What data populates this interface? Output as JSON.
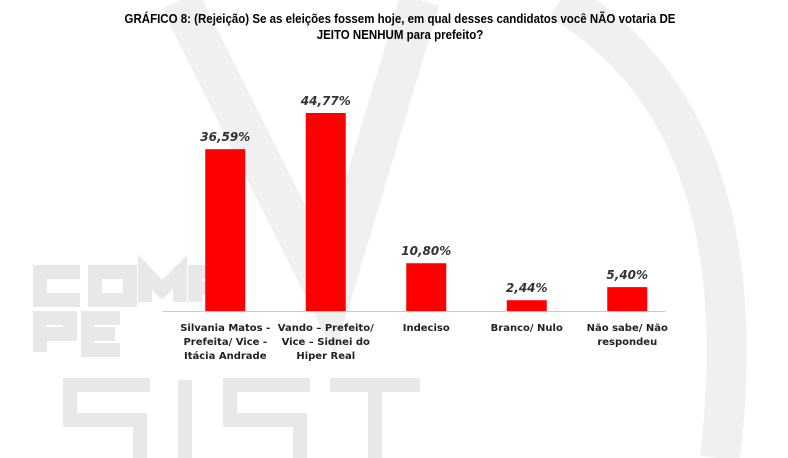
{
  "watermark": {
    "lines": [
      "COMPASSO",
      "PESQUISA",
      "SIST"
    ]
  },
  "chart_data": {
    "type": "bar",
    "title": "GRÁFICO 8: (Rejeição) Se as eleições fossem hoje, em qual desses candidatos você NÃO votaria DE JEITO NENHUM para prefeito?",
    "categories": [
      [
        "Silvania Matos -",
        "Prefeita/ Vice -",
        "Itácia Andrade"
      ],
      [
        "Vando – Prefeito/",
        "Vice – Sidnei do",
        "Hiper Real"
      ],
      [
        "Indeciso"
      ],
      [
        "Branco/ Nulo"
      ],
      [
        "Não sabe/ Não",
        "respondeu"
      ]
    ],
    "values": [
      36.59,
      44.77,
      10.8,
      2.44,
      5.4
    ],
    "value_labels": [
      "36,59%",
      "44,77%",
      "10,80%",
      "2,44%",
      "5,40%"
    ],
    "xlabel": "",
    "ylabel": "",
    "ylim": [
      0,
      50
    ],
    "bar_color": "#ff0000",
    "grid": false
  }
}
